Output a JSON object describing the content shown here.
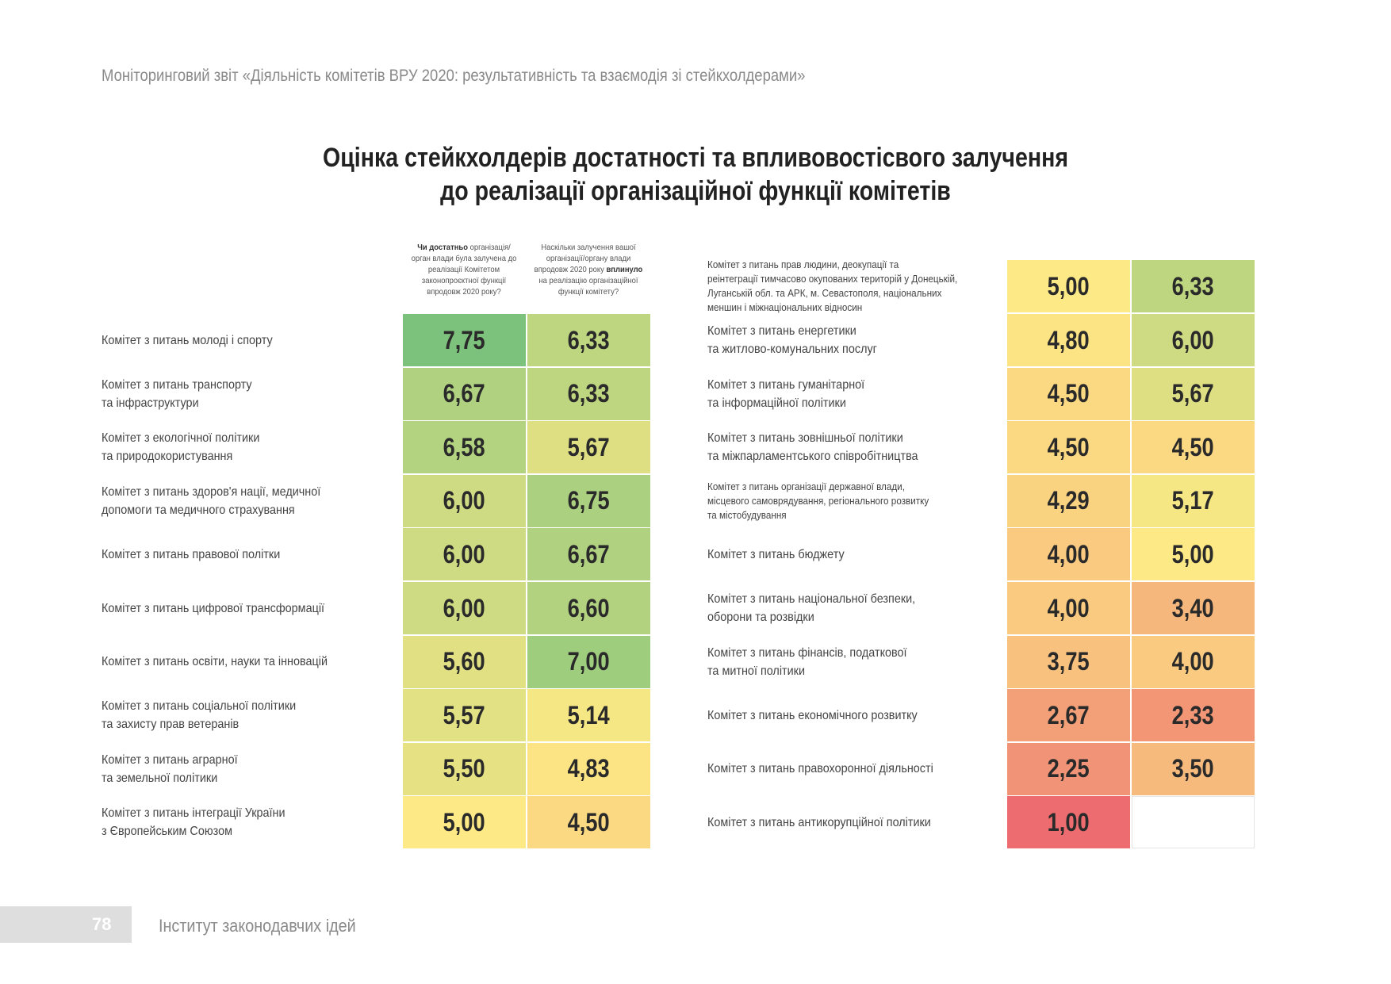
{
  "header": {
    "running_title": "Моніторинговий звіт «Діяльність комітетів ВРУ 2020: результативність та взаємодія зі стейкхолдерами»"
  },
  "title": {
    "line1": "Оцінка стейкхолдерів достатності та впливовостісвого залучення",
    "line2": "до реалізації організаційної функції комітетів"
  },
  "columns": {
    "col1": {
      "bold": "Чи достатньо",
      "rest": "організація/орган влади була залучена до реалізації Комітетом законопроєктної функції впродовж 2020 року?"
    },
    "col2": {
      "before": "Наскільки залучення вашої організації/органу влади впродовж 2020 року ",
      "bold": "вплинуло",
      "after": " на реалізацію організаційної функції комітету?"
    }
  },
  "color_scale": {
    "min_color": "#ec6c6f",
    "mid_color": "#fde985",
    "max_color": "#7cc27c"
  },
  "left_rows": [
    {
      "label": "Комітет з питань молоді і спорту",
      "v1": "7,75",
      "v2": "6,33"
    },
    {
      "label": "Комітет з питань транспорту\nта інфраструктури",
      "v1": "6,67",
      "v2": "6,33"
    },
    {
      "label": "Комітет з екологічної політики\nта природокористування",
      "v1": "6,58",
      "v2": "5,67"
    },
    {
      "label": "Комітет з питань здоров'я нації, медичної\nдопомоги та медичного страхування",
      "v1": "6,00",
      "v2": "6,75"
    },
    {
      "label": "Комітет з питань правової політки",
      "v1": "6,00",
      "v2": "6,67"
    },
    {
      "label": "Комітет з питань цифрової трансформації",
      "v1": "6,00",
      "v2": "6,60"
    },
    {
      "label": "Комітет з питань освіти, науки та інновацій",
      "v1": "5,60",
      "v2": "7,00"
    },
    {
      "label": "Комітет з питань соціальної політики\nта захисту прав ветеранів",
      "v1": "5,57",
      "v2": "5,14"
    },
    {
      "label": "Комітет з питань аграрної\nта земельної політики",
      "v1": "5,50",
      "v2": "4,83"
    },
    {
      "label": "Комітет з питань інтеграції України\nз Європейським Союзом",
      "v1": "5,00",
      "v2": "4,50"
    }
  ],
  "right_rows": [
    {
      "label": "Комітет з питань прав людини, деокупації та\nреінтеграції тимчасово окупованих територій у Донецькій,\nЛуганській обл. та АРК, м. Севастополя, національних\nменшин і міжнаціональних відносин",
      "v1": "5,00",
      "v2": "6,33",
      "small": true
    },
    {
      "label": "Комітет з питань енергетики\nта житлово-комунальних послуг",
      "v1": "4,80",
      "v2": "6,00"
    },
    {
      "label": "Комітет з питань гуманітарної\nта інформаційної політики",
      "v1": "4,50",
      "v2": "5,67"
    },
    {
      "label": "Комітет з питань зовнішньої політики\nта міжпарламентського співробітництва",
      "v1": "4,50",
      "v2": "4,50"
    },
    {
      "label": "Комітет з питань організації державної влади,\nмісцевого самоврядування, регіонального розвитку\nта містобудування",
      "v1": "4,29",
      "v2": "5,17",
      "small": true
    },
    {
      "label": "Комітет з питань бюджету",
      "v1": "4,00",
      "v2": "5,00"
    },
    {
      "label": "Комітет з питань національної безпеки,\nоборони та розвідки",
      "v1": "4,00",
      "v2": "3,40"
    },
    {
      "label": "Комітет з питань фінансів, податкової\nта митної політики",
      "v1": "3,75",
      "v2": "4,00"
    },
    {
      "label": "Комітет з питань економічного розвитку",
      "v1": "2,67",
      "v2": "2,33"
    },
    {
      "label": "Комітет з питань правохоронної діяльності",
      "v1": "2,25",
      "v2": "3,50"
    },
    {
      "label": "Комітет з питань антикорупційної політики",
      "v1": "1,00",
      "v2": ""
    }
  ],
  "footer": {
    "page_number": "78",
    "organization": "Інститут законодавчих ідей"
  }
}
